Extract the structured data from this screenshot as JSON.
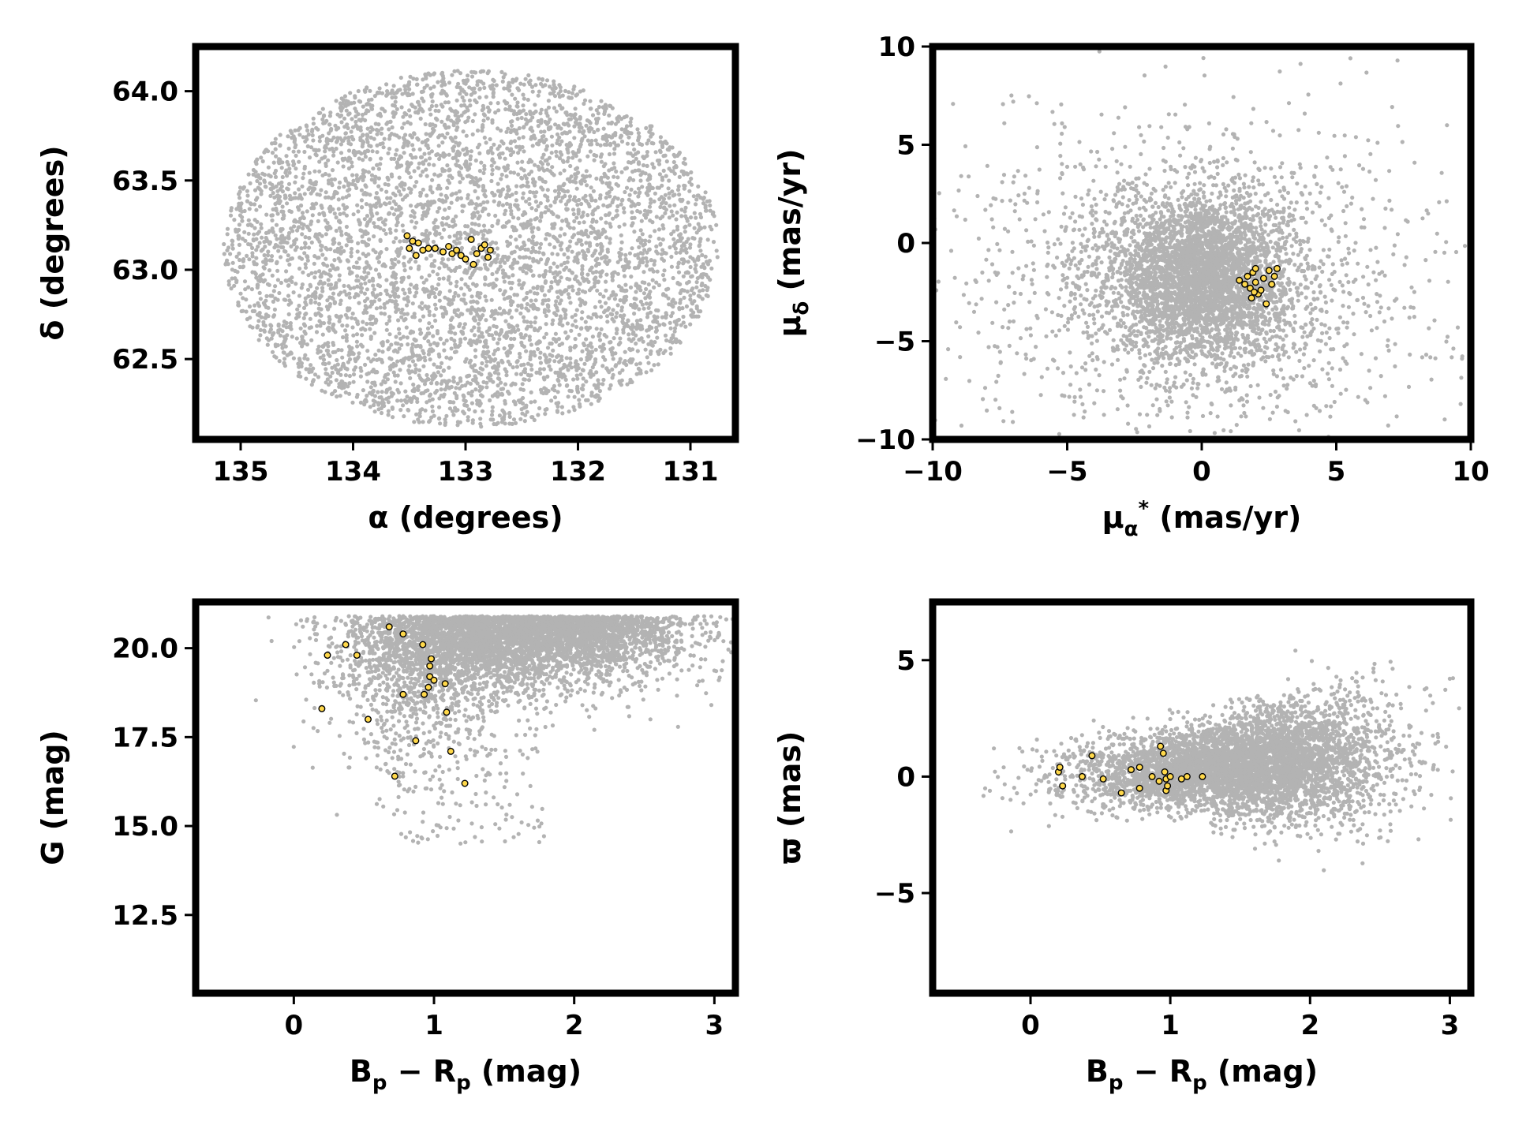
{
  "colors": {
    "field": "#b3b3b3",
    "member_fill": "#ffd84a",
    "member_edge": "#000000",
    "frame": "#000000"
  },
  "chart_data": [
    {
      "id": "sky",
      "type": "scatter",
      "xlabel": {
        "main": "α (degrees)"
      },
      "ylabel": {
        "main": "δ (degrees)"
      },
      "xlim": [
        135.4,
        130.6
      ],
      "ylim": [
        62.05,
        64.25
      ],
      "xticks": [
        135,
        134,
        133,
        132,
        131
      ],
      "xtick_labels": [
        "135",
        "134",
        "133",
        "132",
        "131"
      ],
      "yticks": [
        62.5,
        63.0,
        63.5,
        64.0
      ],
      "ytick_labels": [
        "62.5",
        "63.0",
        "63.5",
        "64.0"
      ],
      "field": {
        "kind": "ellipse",
        "center": [
          132.95,
          63.12
        ],
        "radius": [
          2.2,
          1.0
        ],
        "n": 5200
      },
      "members": [
        [
          133.52,
          63.19
        ],
        [
          133.47,
          63.16
        ],
        [
          133.42,
          63.15
        ],
        [
          133.38,
          63.11
        ],
        [
          133.33,
          63.12
        ],
        [
          133.27,
          63.12
        ],
        [
          133.5,
          63.12
        ],
        [
          133.44,
          63.08
        ],
        [
          133.2,
          63.1
        ],
        [
          133.15,
          63.13
        ],
        [
          133.12,
          63.09
        ],
        [
          133.08,
          63.11
        ],
        [
          133.04,
          63.08
        ],
        [
          133.0,
          63.06
        ],
        [
          132.95,
          63.17
        ],
        [
          132.93,
          63.03
        ],
        [
          132.9,
          63.09
        ],
        [
          132.86,
          63.12
        ],
        [
          132.83,
          63.14
        ],
        [
          132.8,
          63.07
        ],
        [
          132.78,
          63.11
        ]
      ]
    },
    {
      "id": "pm",
      "type": "scatter",
      "xlabel": {
        "main": "μ",
        "sub": "α",
        "sup": "*",
        "rest": " (mas/yr)"
      },
      "ylabel": {
        "main": "μ",
        "sub": "δ",
        "rest": " (mas/yr)"
      },
      "xlim": [
        -10,
        10
      ],
      "ylim": [
        -10,
        10
      ],
      "xticks": [
        -10,
        -5,
        0,
        5,
        10
      ],
      "xtick_labels": [
        "−10",
        "−5",
        "0",
        "5",
        "10"
      ],
      "yticks": [
        -10,
        -5,
        0,
        5,
        10
      ],
      "ytick_labels": [
        "−10",
        "−5",
        "0",
        "5",
        "10"
      ],
      "field": {
        "kind": "gaussian_core_halo",
        "center": [
          0,
          -1.8
        ],
        "core_sigma": [
          1.6,
          2.0
        ],
        "halo_sigma": [
          4.5,
          4.0
        ],
        "n_core": 3400,
        "n_halo": 1600
      },
      "members": [
        [
          1.4,
          -1.9
        ],
        [
          1.6,
          -2.1
        ],
        [
          1.7,
          -1.7
        ],
        [
          1.8,
          -2.3
        ],
        [
          1.9,
          -1.5
        ],
        [
          2.0,
          -2.0
        ],
        [
          2.1,
          -2.6
        ],
        [
          1.85,
          -2.8
        ],
        [
          2.2,
          -2.4
        ],
        [
          2.3,
          -1.8
        ],
        [
          2.5,
          -1.4
        ],
        [
          2.6,
          -2.1
        ],
        [
          2.7,
          -1.7
        ],
        [
          2.8,
          -1.3
        ],
        [
          2.4,
          -3.1
        ],
        [
          2.0,
          -1.3
        ],
        [
          1.95,
          -2.5
        ]
      ]
    },
    {
      "id": "cmd",
      "type": "scatter",
      "xlabel": {
        "main": "B",
        "sub": "p",
        "rest2": " − R",
        "sub2": "p",
        "rest": " (mag)"
      },
      "ylabel": {
        "main": "G (mag)"
      },
      "xlim": [
        -0.7,
        3.15
      ],
      "ylim": [
        10.3,
        21.3
      ],
      "xticks": [
        0,
        1,
        2,
        3
      ],
      "xtick_labels": [
        "0",
        "1",
        "2",
        "3"
      ],
      "yticks": [
        12.5,
        15.0,
        17.5,
        20.0
      ],
      "ytick_labels": [
        "12.5",
        "15.0",
        "17.5",
        "20.0"
      ],
      "field": {
        "kind": "cmd",
        "mag_cut": 20.9,
        "n": 5000
      },
      "members": [
        [
          0.2,
          18.3
        ],
        [
          0.24,
          19.8
        ],
        [
          0.37,
          20.1
        ],
        [
          0.45,
          19.8
        ],
        [
          0.53,
          18.0
        ],
        [
          0.68,
          20.6
        ],
        [
          0.72,
          16.4
        ],
        [
          0.78,
          20.4
        ],
        [
          0.78,
          18.7
        ],
        [
          0.87,
          17.4
        ],
        [
          0.92,
          20.1
        ],
        [
          0.93,
          18.7
        ],
        [
          0.96,
          18.9
        ],
        [
          0.97,
          19.5
        ],
        [
          0.97,
          19.2
        ],
        [
          0.98,
          19.7
        ],
        [
          1.0,
          19.1
        ],
        [
          1.08,
          19.0
        ],
        [
          1.09,
          18.2
        ],
        [
          1.12,
          17.1
        ],
        [
          1.22,
          16.2
        ]
      ]
    },
    {
      "id": "plx",
      "type": "scatter",
      "xlabel": {
        "main": "B",
        "sub": "p",
        "rest2": " − R",
        "sub2": "p",
        "rest": " (mag)"
      },
      "ylabel": {
        "main": "ϖ (mas)"
      },
      "xlim": [
        -0.7,
        3.15
      ],
      "ylim": [
        -9.3,
        7.5
      ],
      "xticks": [
        0,
        1,
        2,
        3
      ],
      "xtick_labels": [
        "0",
        "1",
        "2",
        "3"
      ],
      "yticks": [
        -5,
        0,
        5
      ],
      "ytick_labels": [
        "−5",
        "0",
        "5"
      ],
      "field": {
        "kind": "plx",
        "n": 5200
      },
      "members": [
        [
          0.2,
          0.2
        ],
        [
          0.21,
          0.4
        ],
        [
          0.23,
          -0.4
        ],
        [
          0.37,
          0.0
        ],
        [
          0.44,
          0.9
        ],
        [
          0.52,
          -0.1
        ],
        [
          0.65,
          -0.7
        ],
        [
          0.72,
          0.3
        ],
        [
          0.78,
          0.4
        ],
        [
          0.78,
          -0.5
        ],
        [
          0.87,
          0.0
        ],
        [
          0.92,
          -0.2
        ],
        [
          0.93,
          1.3
        ],
        [
          0.95,
          1.0
        ],
        [
          0.96,
          0.2
        ],
        [
          0.97,
          -0.1
        ],
        [
          0.97,
          -0.6
        ],
        [
          0.98,
          -0.4
        ],
        [
          1.0,
          0.0
        ],
        [
          1.08,
          -0.1
        ],
        [
          1.12,
          0.0
        ],
        [
          1.23,
          0.0
        ]
      ]
    }
  ]
}
